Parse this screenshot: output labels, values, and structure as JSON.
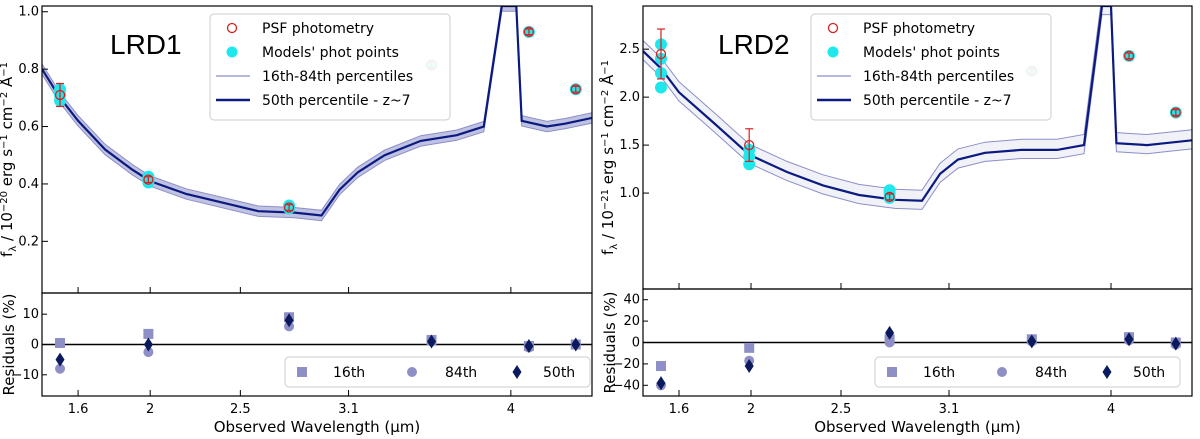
{
  "chart_data": [
    {
      "type": "line",
      "title": "LRD1",
      "xlabel": "Observed Wavelength (μm)",
      "ylabel": "f_λ / 10^-20 erg s^-1 cm^-2 Å^-1",
      "xlim": [
        1.4,
        4.45
      ],
      "ylim": [
        0.02,
        1.02
      ],
      "xticks": [
        1.6,
        2,
        2.5,
        3.1,
        4
      ],
      "xtick_labels": [
        "1.6",
        "2",
        "2.5",
        "3.1",
        "4"
      ],
      "yticks": [
        0.2,
        0.4,
        0.6,
        0.8,
        1.0
      ],
      "ytick_labels": [
        "0.2",
        "0.4",
        "0.6",
        "0.8",
        "1.0"
      ],
      "legend": {
        "position": "top-center",
        "entries": [
          "PSF photometry",
          "Models' phot points",
          "16th-84th percentiles",
          "50th percentile  - z~7"
        ]
      },
      "photometry": [
        {
          "x": 1.5,
          "y": 0.71,
          "err": 0.04
        },
        {
          "x": 1.99,
          "y": 0.415,
          "err": 0.01
        },
        {
          "x": 2.77,
          "y": 0.318,
          "err": 0.01
        },
        {
          "x": 3.56,
          "y": 0.815,
          "err": 0.01
        },
        {
          "x": 4.1,
          "y": 0.93,
          "err": 0.01
        },
        {
          "x": 4.36,
          "y": 0.73,
          "err": 0.01
        }
      ],
      "model_points": [
        {
          "x": 1.5,
          "ys": [
            0.69,
            0.71,
            0.73
          ]
        },
        {
          "x": 1.99,
          "ys": [
            0.405,
            0.415,
            0.425
          ]
        },
        {
          "x": 2.77,
          "ys": [
            0.315,
            0.32,
            0.325
          ]
        },
        {
          "x": 3.56,
          "ys": [
            0.815
          ]
        },
        {
          "x": 4.1,
          "ys": [
            0.93
          ]
        },
        {
          "x": 4.36,
          "ys": [
            0.73
          ]
        }
      ],
      "spectrum_50th": [
        [
          1.4,
          0.8
        ],
        [
          1.5,
          0.7
        ],
        [
          1.6,
          0.62
        ],
        [
          1.75,
          0.52
        ],
        [
          1.9,
          0.45
        ],
        [
          2.0,
          0.41
        ],
        [
          2.2,
          0.365
        ],
        [
          2.4,
          0.335
        ],
        [
          2.6,
          0.305
        ],
        [
          2.8,
          0.3
        ],
        [
          2.95,
          0.29
        ],
        [
          3.05,
          0.38
        ],
        [
          3.15,
          0.44
        ],
        [
          3.3,
          0.5
        ],
        [
          3.5,
          0.55
        ],
        [
          3.7,
          0.57
        ],
        [
          3.85,
          0.6
        ],
        [
          3.95,
          1.02
        ],
        [
          4.03,
          1.02
        ],
        [
          4.06,
          0.62
        ],
        [
          4.2,
          0.6
        ],
        [
          4.3,
          0.61
        ],
        [
          4.45,
          0.63
        ]
      ],
      "band_halfwidth": 0.018,
      "residuals": {
        "ylabel": "Residuals (%)",
        "ylim": [
          -17,
          17
        ],
        "yticks": [
          -10,
          0,
          10
        ],
        "ytick_labels": [
          "−10",
          "0",
          "10"
        ],
        "legend_entries": [
          "16th",
          "84th",
          "50th"
        ],
        "x": [
          1.5,
          1.99,
          2.77,
          3.56,
          4.1,
          4.36
        ],
        "p16": [
          0.5,
          3.5,
          9,
          1.5,
          -0.5,
          0
        ],
        "p84": [
          -8,
          -2.5,
          6,
          1,
          -1,
          0
        ],
        "p50": [
          -5,
          0,
          8,
          1,
          -0.5,
          0
        ]
      }
    },
    {
      "type": "line",
      "title": "LRD2",
      "xlabel": "Observed Wavelength (μm)",
      "ylabel": "f_λ / 10^-21 erg s^-1 cm^-2 Å^-1",
      "xlim": [
        1.4,
        4.45
      ],
      "ylim": [
        0.0,
        2.95
      ],
      "xticks": [
        1.6,
        2,
        2.5,
        3.1,
        4
      ],
      "xtick_labels": [
        "1.6",
        "2",
        "2.5",
        "3.1",
        "4"
      ],
      "yticks": [
        1.0,
        1.5,
        2.0,
        2.5
      ],
      "ytick_labels": [
        "1.0",
        "1.5",
        "2.0",
        "2.5"
      ],
      "legend": {
        "position": "top-center",
        "entries": [
          "PSF photometry",
          "Models' phot points",
          "16th-84th percentiles",
          "50th percentile  - z~7"
        ]
      },
      "photometry": [
        {
          "x": 1.5,
          "y": 2.45,
          "err": 0.26
        },
        {
          "x": 1.99,
          "y": 1.5,
          "err": 0.17
        },
        {
          "x": 2.77,
          "y": 0.96,
          "err": 0.03
        },
        {
          "x": 3.56,
          "y": 2.27,
          "err": 0.03
        },
        {
          "x": 4.1,
          "y": 2.43,
          "err": 0.03
        },
        {
          "x": 4.36,
          "y": 1.84,
          "err": 0.03
        }
      ],
      "model_points": [
        {
          "x": 1.5,
          "ys": [
            2.1,
            2.25,
            2.4,
            2.55
          ]
        },
        {
          "x": 1.99,
          "ys": [
            1.3,
            1.38,
            1.45
          ]
        },
        {
          "x": 2.77,
          "ys": [
            0.95,
            1.0,
            1.03
          ]
        },
        {
          "x": 3.56,
          "ys": [
            2.27
          ]
        },
        {
          "x": 4.1,
          "ys": [
            2.43
          ]
        },
        {
          "x": 4.36,
          "ys": [
            1.84
          ]
        }
      ],
      "spectrum_50th": [
        [
          1.4,
          2.48
        ],
        [
          1.5,
          2.3
        ],
        [
          1.6,
          2.05
        ],
        [
          1.8,
          1.72
        ],
        [
          1.99,
          1.4
        ],
        [
          2.2,
          1.22
        ],
        [
          2.4,
          1.08
        ],
        [
          2.6,
          0.98
        ],
        [
          2.8,
          0.93
        ],
        [
          2.95,
          0.92
        ],
        [
          3.05,
          1.2
        ],
        [
          3.15,
          1.35
        ],
        [
          3.3,
          1.42
        ],
        [
          3.5,
          1.45
        ],
        [
          3.7,
          1.45
        ],
        [
          3.85,
          1.5
        ],
        [
          3.95,
          2.95
        ],
        [
          4.0,
          2.95
        ],
        [
          4.03,
          1.52
        ],
        [
          4.2,
          1.5
        ],
        [
          4.3,
          1.52
        ],
        [
          4.45,
          1.55
        ]
      ],
      "band_offsets": [
        -0.09,
        0.11
      ],
      "residuals": {
        "ylabel": "Residuals (%)",
        "ylim": [
          -50,
          50
        ],
        "yticks": [
          -40,
          -20,
          0,
          20,
          40
        ],
        "ytick_labels": [
          "−40",
          "−20",
          "0",
          "20",
          "40"
        ],
        "legend_entries": [
          "16th",
          "84th",
          "50th"
        ],
        "x": [
          1.5,
          1.99,
          2.77,
          3.56,
          4.1,
          4.36
        ],
        "p16": [
          -22,
          -5,
          3,
          3,
          5,
          0
        ],
        "p84": [
          -40,
          -17,
          0,
          1,
          2,
          -2
        ],
        "p50": [
          -38,
          -22,
          9,
          1,
          3,
          -1
        ]
      }
    }
  ]
}
